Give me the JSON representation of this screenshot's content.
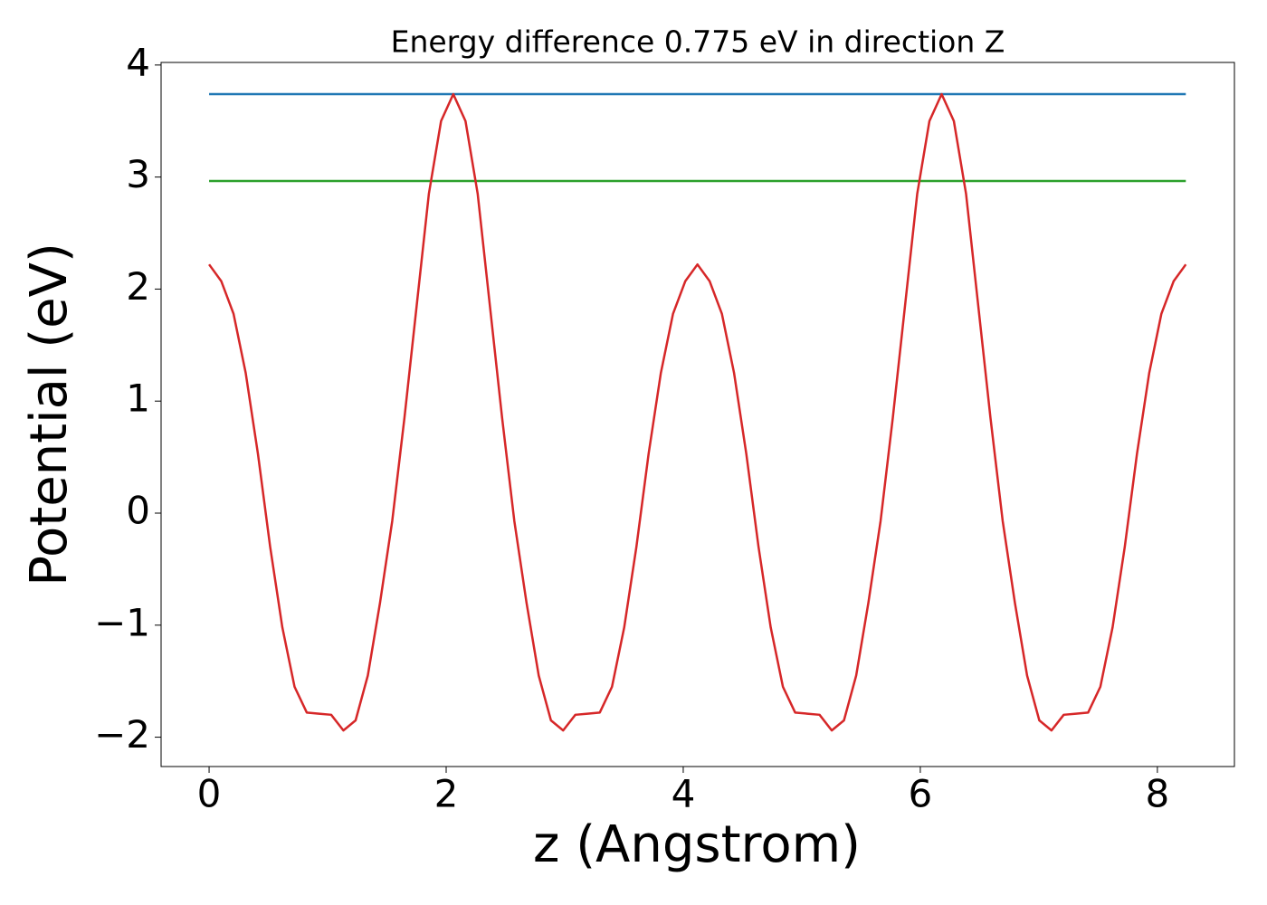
{
  "chart_data": {
    "type": "line",
    "title": "Energy difference 0.775 eV in direction Z",
    "x_label": "z (Angstrom)",
    "y_label": "Potential (eV)",
    "xlim": [
      -0.405,
      8.65
    ],
    "ylim": [
      -2.262,
      4.023
    ],
    "xticks": [
      0,
      2,
      4,
      6,
      8
    ],
    "yticks": [
      {
        "value": -2,
        "label": "−2"
      },
      {
        "value": -1,
        "label": "−1"
      },
      0,
      1,
      2,
      3,
      4
    ],
    "series": [
      {
        "color": "#1f77b4",
        "x": [
          0,
          8.24
        ],
        "values": [
          3.74,
          3.74
        ]
      },
      {
        "color": "#2ca02c",
        "x": [
          0,
          8.24
        ],
        "values": [
          2.965,
          2.965
        ]
      },
      {
        "color": "#d62728",
        "x": [
          0,
          0.103,
          0.206,
          0.309,
          0.412,
          0.515,
          0.618,
          0.721,
          0.824,
          0.927,
          1.03,
          1.133,
          1.236,
          1.339,
          1.442,
          1.545,
          1.648,
          1.751,
          1.854,
          1.957,
          2.06,
          2.163,
          2.266,
          2.369,
          2.472,
          2.575,
          2.678,
          2.781,
          2.884,
          2.987,
          3.09,
          3.193,
          3.296,
          3.399,
          3.502,
          3.605,
          3.708,
          3.811,
          3.914,
          4.017,
          4.12,
          4.223,
          4.326,
          4.429,
          4.532,
          4.635,
          4.738,
          4.841,
          4.944,
          5.047,
          5.15,
          5.253,
          5.356,
          5.459,
          5.562,
          5.665,
          5.768,
          5.871,
          5.974,
          6.077,
          6.18,
          6.283,
          6.386,
          6.489,
          6.592,
          6.695,
          6.798,
          6.901,
          7.004,
          7.107,
          7.21,
          7.313,
          7.416,
          7.519,
          7.622,
          7.725,
          7.828,
          7.931,
          8.034,
          8.137,
          8.24
        ],
        "values": [
          2.22,
          2.07,
          1.78,
          1.25,
          0.53,
          -0.3,
          -1.02,
          -1.55,
          -1.78,
          -1.79,
          -1.8,
          -1.94,
          -1.85,
          -1.45,
          -0.8,
          -0.07,
          0.85,
          1.85,
          2.85,
          3.5,
          3.74,
          3.5,
          2.85,
          1.85,
          0.85,
          -0.07,
          -0.8,
          -1.45,
          -1.85,
          -1.94,
          -1.8,
          -1.79,
          -1.78,
          -1.55,
          -1.02,
          -0.3,
          0.53,
          1.25,
          1.78,
          2.07,
          2.22,
          2.07,
          1.78,
          1.25,
          0.53,
          -0.3,
          -1.02,
          -1.55,
          -1.78,
          -1.79,
          -1.8,
          -1.94,
          -1.85,
          -1.45,
          -0.8,
          -0.07,
          0.85,
          1.85,
          2.85,
          3.5,
          3.74,
          3.5,
          2.85,
          1.85,
          0.85,
          -0.07,
          -0.8,
          -1.45,
          -1.85,
          -1.94,
          -1.8,
          -1.79,
          -1.78,
          -1.55,
          -1.02,
          -0.3,
          0.53,
          1.25,
          1.78,
          2.07,
          2.22
        ]
      }
    ]
  }
}
